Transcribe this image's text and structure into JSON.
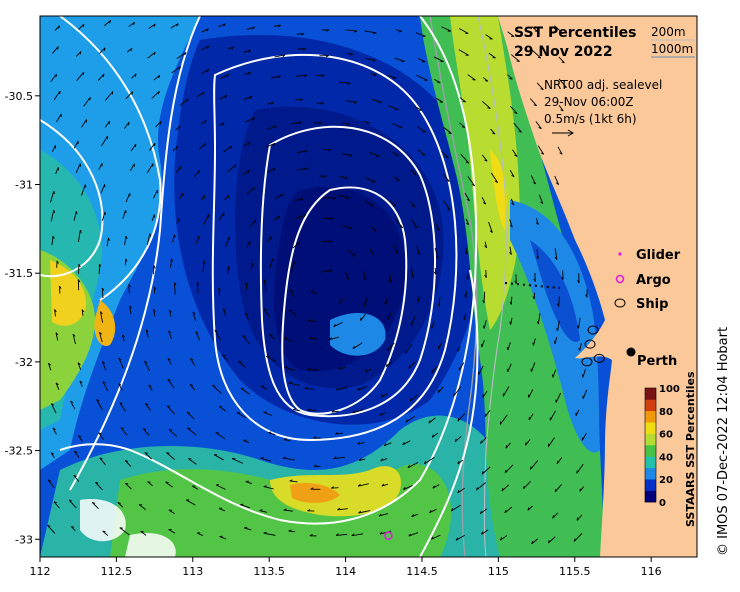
{
  "title": "SST Percentiles",
  "date": "29 Nov 2022",
  "isobaths": {
    "shallow": "200m",
    "deep": "1000m"
  },
  "current_info": {
    "line1": "NRT00 adj. sealevel",
    "line2": "29-Nov 06:00Z",
    "line3": "0.5m/s (1kt 6h)"
  },
  "legend": {
    "glider": "Glider",
    "argo": "Argo",
    "ship": "Ship",
    "glider_color": "#e020e0",
    "argo_color": "#e020e0"
  },
  "city": "Perth",
  "colorbar": {
    "label": "SSTAARS SST Percentiles",
    "ticks": [
      "100",
      "80",
      "60",
      "40",
      "20",
      "0"
    ],
    "colors": [
      "#00007a",
      "#0030c8",
      "#1e88e6",
      "#22c0a8",
      "#46c246",
      "#b4dc32",
      "#f0dc14",
      "#f09a0a",
      "#d24010",
      "#7a1414"
    ]
  },
  "credit": "© IMOS 07-Dec-2022 12:04 Hobart",
  "colors": {
    "land": "#fbc89a",
    "deep_blue": "#001a8c",
    "contour": "#ffffff"
  },
  "chart_data": {
    "type": "heatmap",
    "title": "SST Percentiles",
    "subtitle": "29 Nov 2022",
    "x_ticks": [
      "112",
      "112.5",
      "113",
      "113.5",
      "114",
      "114.5",
      "115",
      "115.5",
      "116"
    ],
    "y_ticks": [
      "-30.5",
      "-31",
      "-31.5",
      "-32",
      "-32.5",
      "-33"
    ],
    "xlim": [
      112,
      116.3
    ],
    "ylim": [
      -33.1,
      -30.05
    ],
    "value_range": [
      0,
      100
    ],
    "places": [
      {
        "name": "Perth",
        "lon": 115.86,
        "lat": -31.95
      }
    ],
    "ship_positions": [
      {
        "lon": 115.62,
        "lat": -31.82
      },
      {
        "lon": 115.6,
        "lat": -31.9
      },
      {
        "lon": 115.66,
        "lat": -31.98
      },
      {
        "lon": 115.58,
        "lat": -32.0
      }
    ],
    "argo_positions": [
      {
        "lon": 114.28,
        "lat": -32.98
      }
    ],
    "eddy_center": {
      "lon": 113.85,
      "lat": -31.55
    }
  }
}
